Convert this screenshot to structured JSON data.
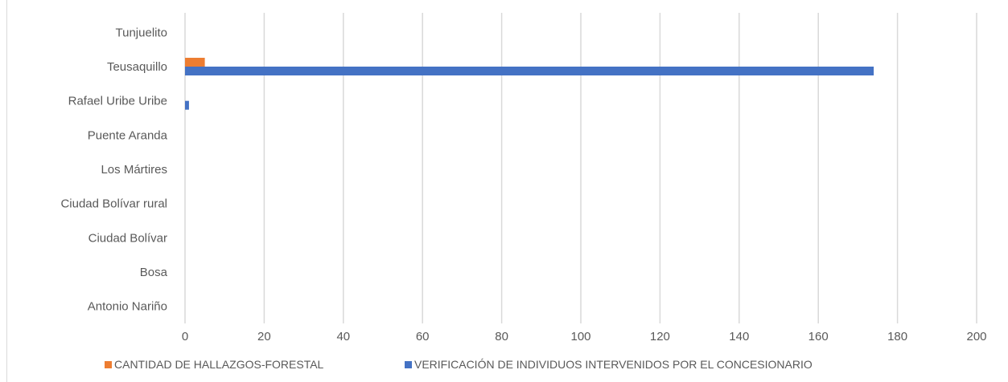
{
  "chart_data": {
    "type": "bar",
    "orientation": "horizontal",
    "categories": [
      "Antonio Nariño",
      "Bosa",
      "Ciudad Bolívar",
      "Ciudad Bolívar rural",
      "Los Mártires",
      "Puente Aranda",
      "Rafael Uribe Uribe",
      "Teusaquillo",
      "Tunjuelito"
    ],
    "series": [
      {
        "name": "CANTIDAD DE HALLAZGOS-FORESTAL",
        "color": "#ed7d31",
        "values": [
          0,
          0,
          0,
          0,
          0,
          0,
          0,
          5,
          0
        ]
      },
      {
        "name": "VERIFICACIÓN DE INDIVIDUOS INTERVENIDOS POR EL CONCESIONARIO",
        "color": "#4472c4",
        "values": [
          0,
          0,
          0,
          0,
          0,
          0,
          1,
          174,
          0
        ]
      }
    ],
    "xlim": [
      0,
      200
    ],
    "xticks": [
      0,
      20,
      40,
      60,
      80,
      100,
      120,
      140,
      160,
      180,
      200
    ],
    "grid": true,
    "legend_position": "bottom"
  }
}
